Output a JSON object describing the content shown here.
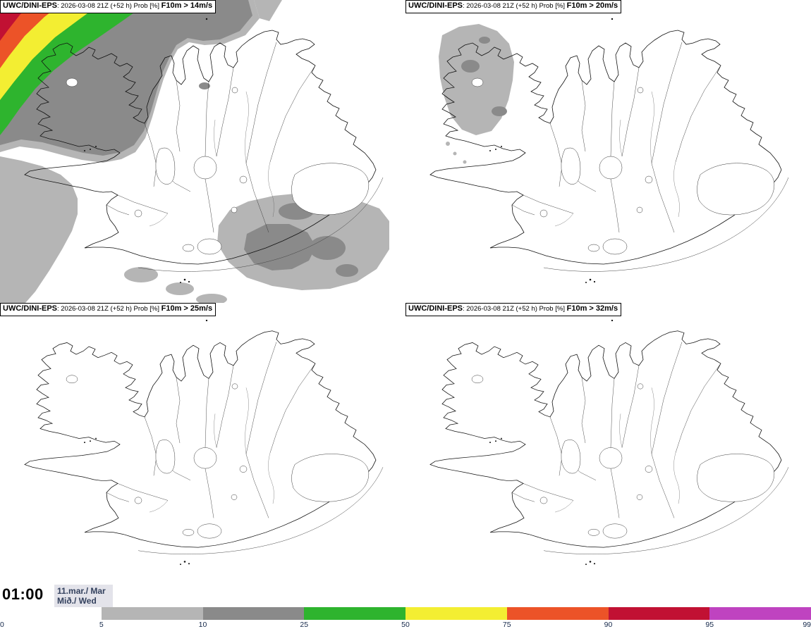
{
  "panels": [
    {
      "product": "UWC/DINI-EPS",
      "meta": ": 2026-03-08 21Z (+52 h) Prob [%] ",
      "threshold": "F10m > 14m/s"
    },
    {
      "product": "UWC/DINI-EPS",
      "meta": ": 2026-03-08 21Z (+52 h) Prob [%] ",
      "threshold": "F10m > 20m/s"
    },
    {
      "product": "UWC/DINI-EPS",
      "meta": ": 2026-03-08 21Z (+52 h) Prob [%] ",
      "threshold": "F10m > 25m/s"
    },
    {
      "product": "UWC/DINI-EPS",
      "meta": ": 2026-03-08 21Z (+52 h) Prob [%] ",
      "threshold": "F10m > 32m/s"
    }
  ],
  "footer": {
    "time": "01:00",
    "date_line1": "11.mar./ Mar",
    "date_line2": "Mið./ Wed"
  },
  "colorbar": {
    "tick_labels": [
      "0",
      "5",
      "10",
      "25",
      "50",
      "75",
      "90",
      "95",
      "99"
    ],
    "segment_colors": [
      "#ffffff",
      "#b5b5b5",
      "#8a8a8a",
      "#2eb42e",
      "#f3ee32",
      "#ec5328",
      "#c11133",
      "#bf43c0"
    ]
  }
}
